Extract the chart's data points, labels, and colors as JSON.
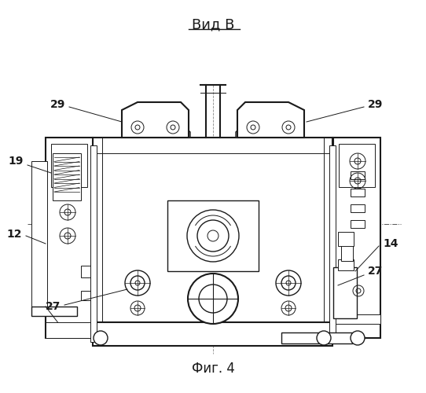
{
  "title_top": "Вид В",
  "title_bottom": "Фиг. 4",
  "bg_color": "#ffffff",
  "line_color": "#1a1a1a",
  "label_fs": 10,
  "anno_lw": 0.7,
  "draw_lw": 1.0,
  "draw_lw2": 1.5
}
